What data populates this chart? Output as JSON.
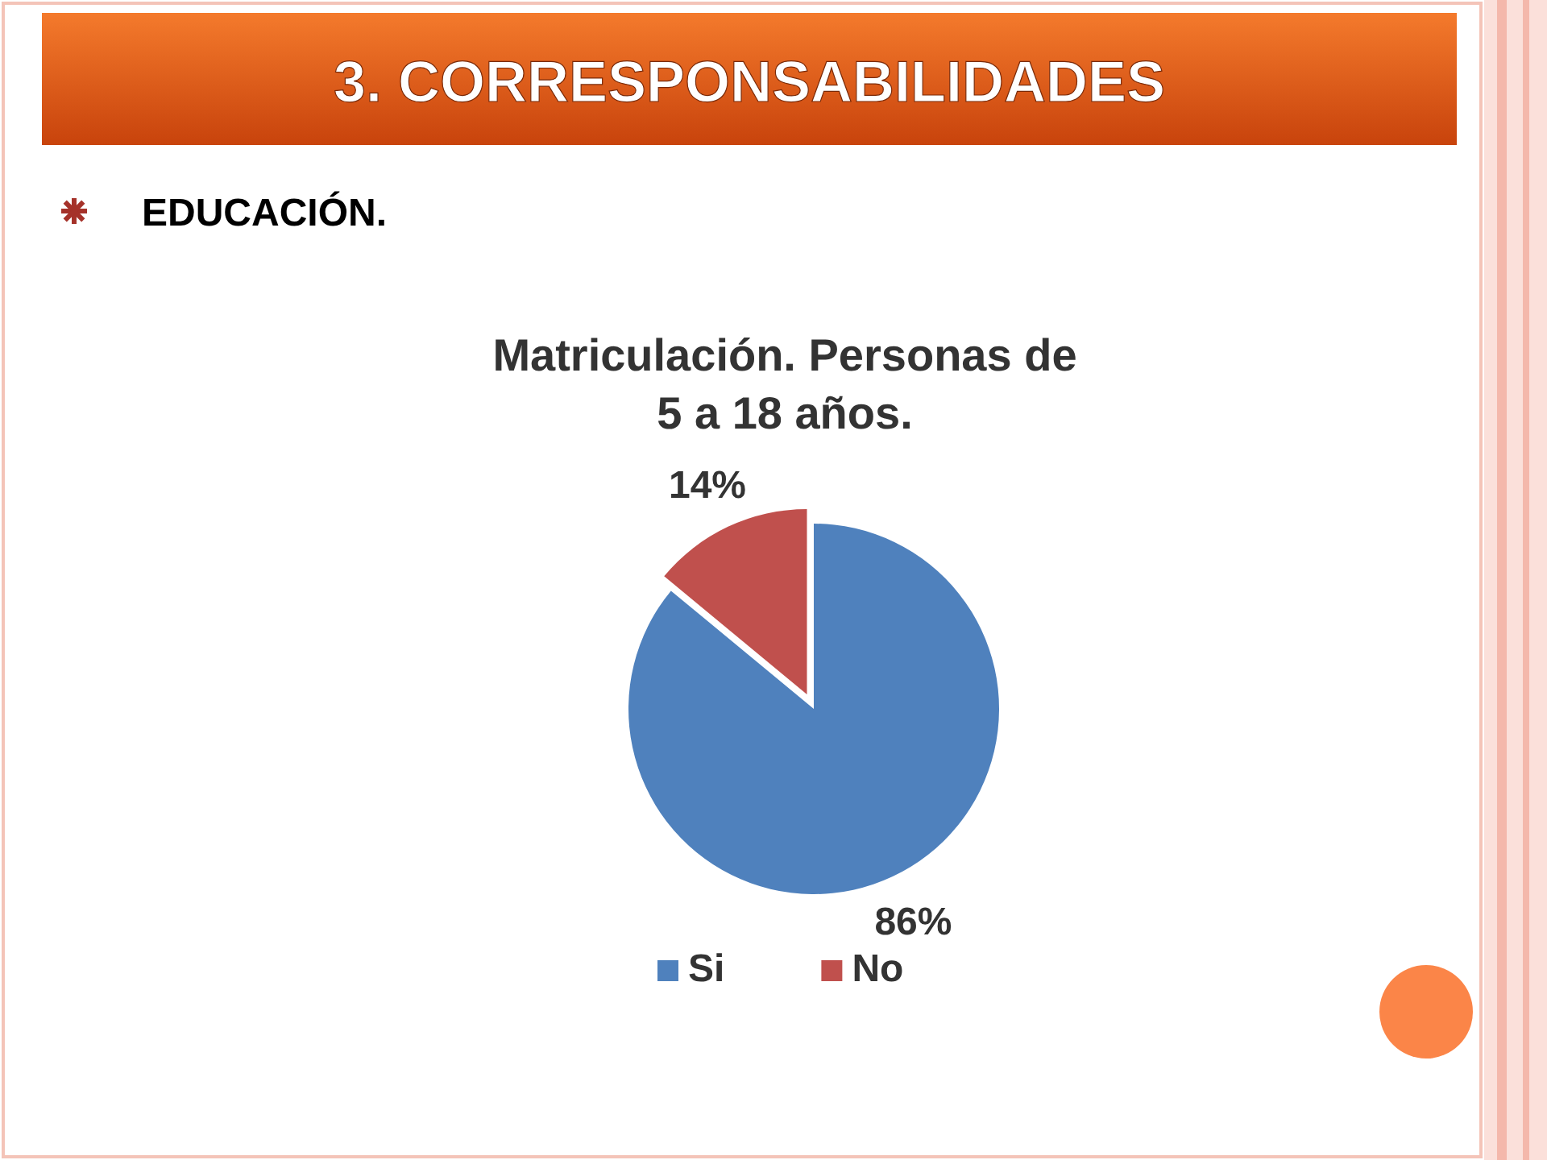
{
  "chart_data": {
    "type": "pie",
    "title": "Matriculación. Personas de 5 a 18 años.",
    "annotations": [
      "3. CORRESPONSABILIDADES",
      "EDUCACIÓN."
    ],
    "categories": [
      "Si",
      "No"
    ],
    "values": [
      86,
      14
    ],
    "colors": [
      "#4f81bd",
      "#c0504d"
    ],
    "data_labels": true,
    "value_labels": [
      "86%",
      "14%"
    ],
    "legend": "bottom"
  }
}
